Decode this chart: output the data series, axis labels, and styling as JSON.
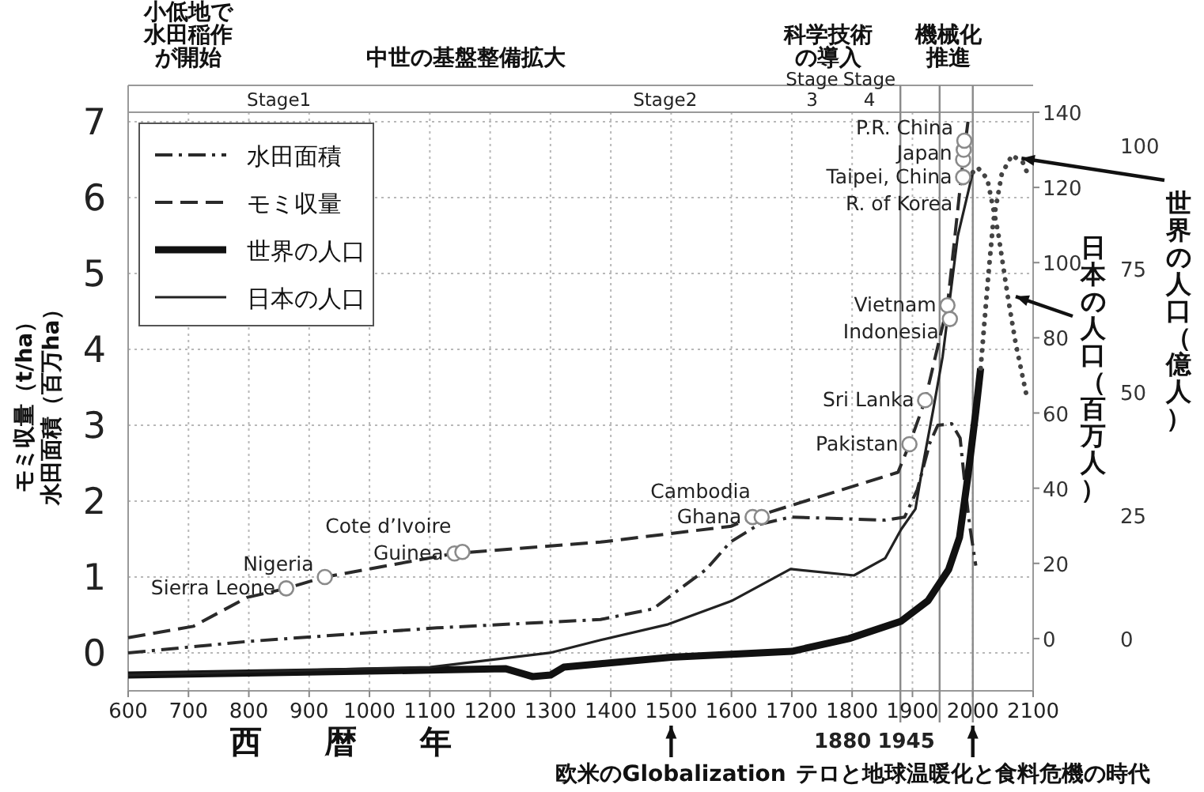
{
  "chart_data": {
    "type": "line",
    "xlabel": "西暦年",
    "ylabel": "モミ収量（t/ha）水田面積（百万ha）",
    "y2label": "日本の人口（百万人）",
    "y3label": "世界の人口（億人）",
    "xlim": [
      600,
      2100
    ],
    "xticks": [
      600,
      700,
      800,
      900,
      1000,
      1100,
      1200,
      1300,
      1400,
      1500,
      1600,
      1700,
      1800,
      1900,
      2000,
      2100
    ],
    "ylim": [
      -0.5,
      7.125
    ],
    "yticks": [
      0,
      1,
      2,
      3,
      4,
      5,
      6,
      7
    ],
    "y2lim": [
      -13.9,
      140
    ],
    "y2ticks": [
      0,
      20,
      40,
      60,
      80,
      100,
      120,
      140
    ],
    "y3lim": [
      -10.6,
      106.7
    ],
    "y3ticks": [
      0,
      25,
      50,
      75,
      100
    ],
    "grid": true,
    "legend": "top left",
    "series": [
      {
        "name": "水田面積",
        "line_style": "dashdot",
        "color": "#2a2a2a",
        "x": [
          600,
          797,
          1112,
          1383,
          1470,
          1558,
          1598,
          1645,
          1698,
          1855,
          1887,
          1908,
          1929,
          1942,
          1965,
          1979,
          1987,
          1995,
          2005
        ],
        "values": [
          0,
          0.15,
          0.33,
          0.44,
          0.58,
          1.1,
          1.46,
          1.69,
          1.79,
          1.75,
          1.79,
          2.15,
          2.77,
          3.0,
          3.02,
          2.83,
          2.21,
          1.67,
          1.15
        ]
      },
      {
        "name": "モミ収量",
        "line_style": "dashed",
        "color": "#2a2a2a",
        "x": [
          600,
          708,
          797,
          862,
          926,
          1141,
          1383,
          1600,
          1637,
          1876,
          1895,
          1921,
          1958,
          1984,
          1992
        ],
        "values": [
          0.2,
          0.35,
          0.73,
          0.85,
          1.0,
          1.31,
          1.46,
          1.67,
          1.79,
          2.38,
          2.75,
          3.33,
          4.58,
          6.5,
          7.0
        ]
      },
      {
        "name": "世界の人口",
        "axis": "y3",
        "line_style": "solid",
        "color": "#111111",
        "x": [
          600,
          1100,
          1225,
          1270,
          1300,
          1322,
          1383,
          1500,
          1700,
          1795,
          1881,
          1926,
          1960,
          1978,
          1992,
          2005,
          2013
        ],
        "values": [
          -7.4,
          -6.4,
          -6.1,
          -7.7,
          -7.4,
          -5.8,
          -5.1,
          -3.8,
          -2.6,
          0,
          3.5,
          7.7,
          14,
          20.5,
          33,
          46,
          54.8
        ]
      },
      {
        "name": "日本の人口",
        "axis": "y2",
        "line_style": "solid",
        "color": "#222222",
        "x": [
          600,
          997,
          1100,
          1299,
          1383,
          1495,
          1600,
          1698,
          1803,
          1855,
          1881,
          1905,
          1916,
          1934,
          1950,
          1975,
          2000
        ],
        "values": [
          -9.7,
          -8,
          -7.6,
          -3.8,
          -0.4,
          3.8,
          10,
          18.5,
          16.8,
          21.4,
          29,
          34.5,
          45,
          60.5,
          75,
          107,
          124
        ]
      },
      {
        "axis": "y3",
        "line_style": "dotted",
        "color": "#444444",
        "x": [
          2013,
          2026,
          2034,
          2048,
          2065,
          2083,
          2091
        ],
        "values": [
          54.8,
          74,
          84.6,
          94.2,
          98,
          96.5,
          94.2
        ]
      },
      {
        "axis": "y2",
        "line_style": "dotted",
        "color": "#444444",
        "x": [
          2000,
          2008,
          2024,
          2042,
          2058,
          2071,
          2089
        ],
        "values": [
          124,
          125.3,
          122.3,
          108,
          91,
          78.6,
          64.7
        ]
      },
      {
        "type": "scatter",
        "marker": "circle",
        "color": "#8a8a8a",
        "x": [
          862,
          926,
          1141,
          1154,
          1635,
          1650,
          1895,
          1921,
          1958,
          1962,
          1984,
          1984,
          1985,
          1986
        ],
        "values": [
          0.85,
          1.0,
          1.31,
          1.33,
          1.79,
          1.79,
          2.75,
          3.33,
          4.58,
          4.4,
          6.27,
          6.5,
          6.63,
          6.75
        ]
      }
    ],
    "ref_lines": [
      {
        "axis": "x",
        "value": 1880,
        "label": "1880",
        "color": "#8a8a8a"
      },
      {
        "axis": "x",
        "value": 1945,
        "label": "1945",
        "color": "#8a8a8a"
      },
      {
        "axis": "x",
        "value": 2000,
        "color": "#8a8a8a"
      }
    ],
    "annotations": [
      {
        "text": "Sierra Leone",
        "x": 862,
        "y": 0.85
      },
      {
        "text": "Nigeria",
        "x": 926,
        "y": 1.0
      },
      {
        "text": "Guinea",
        "x": 1141,
        "y": 1.31
      },
      {
        "text": "Cote d’Ivoire",
        "x": 1154,
        "y": 1.33
      },
      {
        "text": "Ghana",
        "x": 1635,
        "y": 1.79
      },
      {
        "text": "Cambodia",
        "x": 1650,
        "y": 1.79
      },
      {
        "text": "Pakistan",
        "x": 1895,
        "y": 2.75
      },
      {
        "text": "Sri Lanka",
        "x": 1921,
        "y": 3.33
      },
      {
        "text": "Vietnam",
        "x": 1958,
        "y": 4.58
      },
      {
        "text": "Indonesia",
        "x": 1962,
        "y": 4.4
      },
      {
        "text": "Taipei, China",
        "x": 1984,
        "y": 6.27
      },
      {
        "text": "Japan",
        "x": 1984,
        "y": 6.5
      },
      {
        "text": "R. of Korea",
        "x": 1985,
        "y": 6.63
      },
      {
        "text": "P.R. China",
        "x": 1986,
        "y": 6.75
      },
      "小低地で水田稲作が開始",
      "中世の基盤整備拡大",
      "科学技術の導入",
      "機械化推進",
      "Stage1",
      "Stage2",
      "Stage 3",
      "Stage 4",
      "欧米のGlobalization",
      "テロと地球温暖化と食料危機の時代"
    ]
  }
}
